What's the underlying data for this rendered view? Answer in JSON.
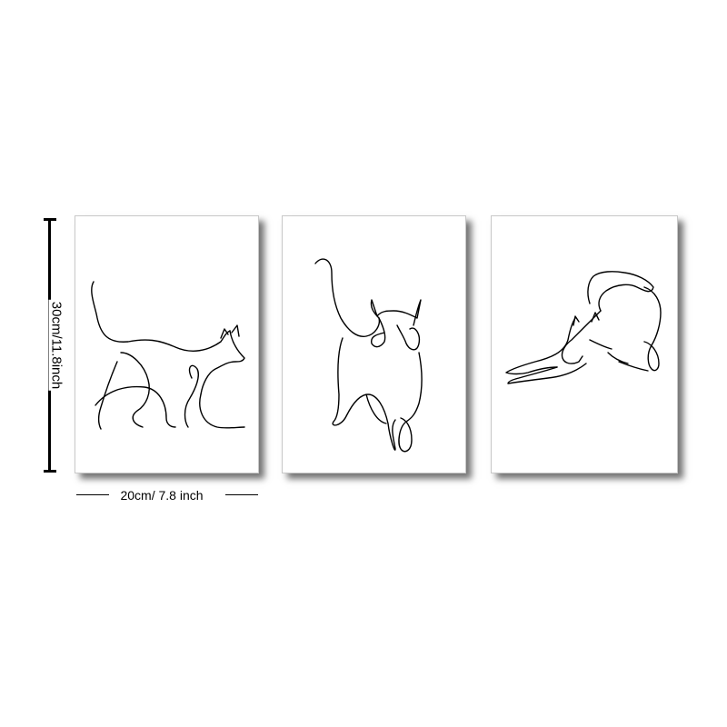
{
  "dimensions": {
    "height_label": "30cm/11.8inch",
    "width_label": "20cm/ 7.8 inch"
  },
  "panels": [
    {
      "subject": "walking-cat-line-drawing"
    },
    {
      "subject": "sitting-cat-back-view-line-drawing"
    },
    {
      "subject": "stretching-cat-line-drawing"
    }
  ],
  "colors": {
    "background": "#ffffff",
    "line": "#000000"
  }
}
